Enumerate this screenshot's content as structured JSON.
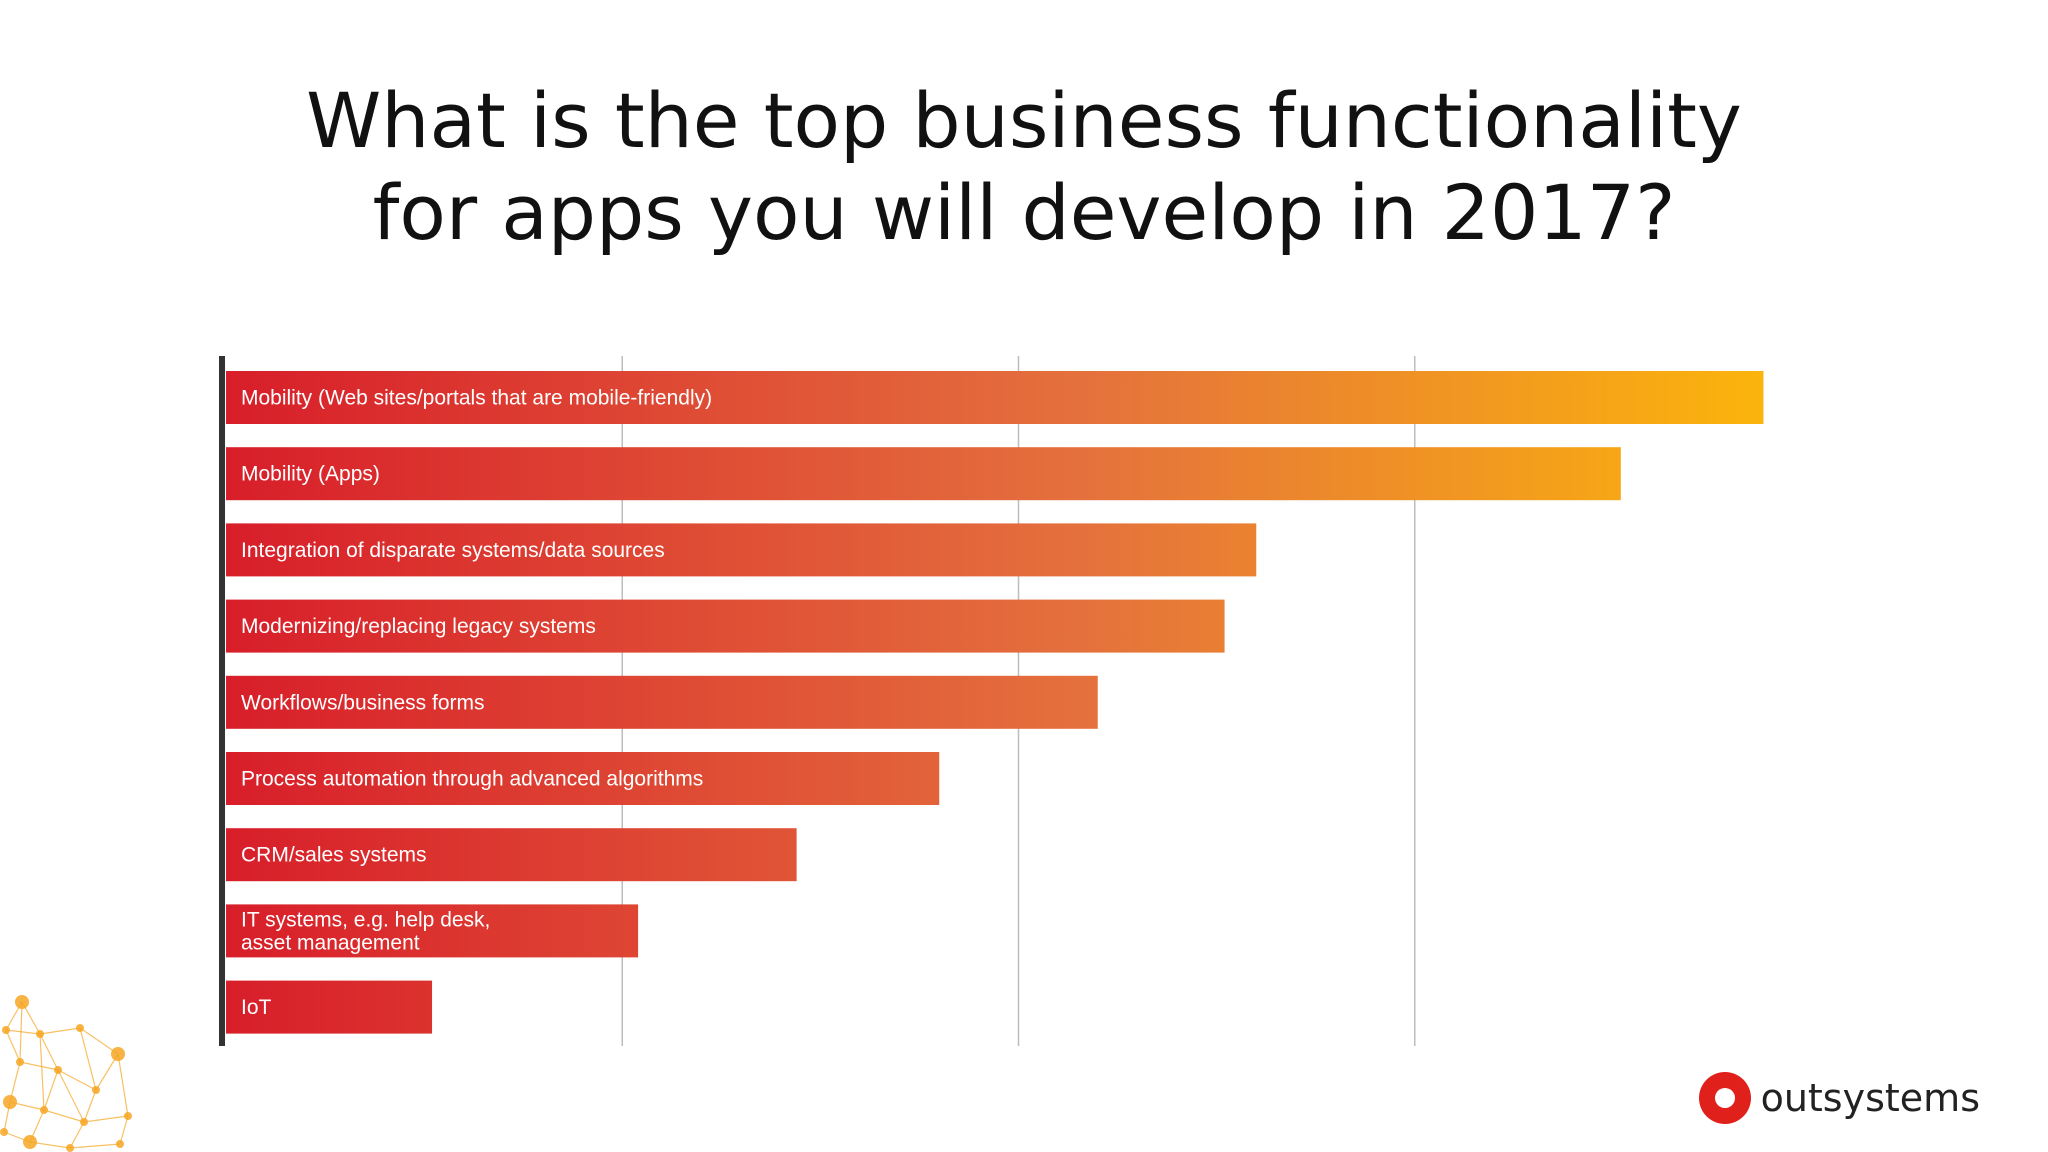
{
  "slide": {
    "title_line1": "What is the top business functionality",
    "title_line2": "for apps you will develop in 2017?",
    "brand_name": "outsystems",
    "brand_icon": "outsystems-logo-icon"
  },
  "colors": {
    "bar_start": "#d81e2a",
    "bar_mid": "#e4703d",
    "bar_end": "#fbb40c",
    "axis": "#333333",
    "gridline": "#bdbdbd",
    "brand_red": "#e0201b",
    "network_orange": "#f6a623"
  },
  "chart_data": {
    "type": "bar",
    "orientation": "horizontal",
    "title": "What is the top business functionality for apps you will develop in 2017?",
    "xlabel": "",
    "ylabel": "",
    "xlim": [
      0,
      100
    ],
    "grid": true,
    "axis_tick_labels_shown": false,
    "categories": [
      "Mobility (Web sites/portals that are mobile-friendly)",
      "Mobility (Apps)",
      "Integration of disparate systems/data sources",
      "Modernizing/replacing legacy systems",
      "Workflows/business forms",
      "Process automation through advanced algorithms",
      "CRM/sales systems",
      "IT systems, e.g. help desk, asset management",
      "IoT"
    ],
    "label_lines": [
      [
        "Mobility (Web sites/portals that are mobile-friendly)"
      ],
      [
        "Mobility (Apps)"
      ],
      [
        "Integration of disparate systems/data sources"
      ],
      [
        "Modernizing/replacing legacy systems"
      ],
      [
        "Workflows/business forms"
      ],
      [
        "Process automation through advanced algorithms"
      ],
      [
        "CRM/sales systems"
      ],
      [
        "IT systems, e.g. help desk,",
        "asset management"
      ],
      [
        "IoT"
      ]
    ],
    "values": [
      97,
      88,
      65,
      63,
      55,
      45,
      36,
      26,
      13
    ]
  }
}
